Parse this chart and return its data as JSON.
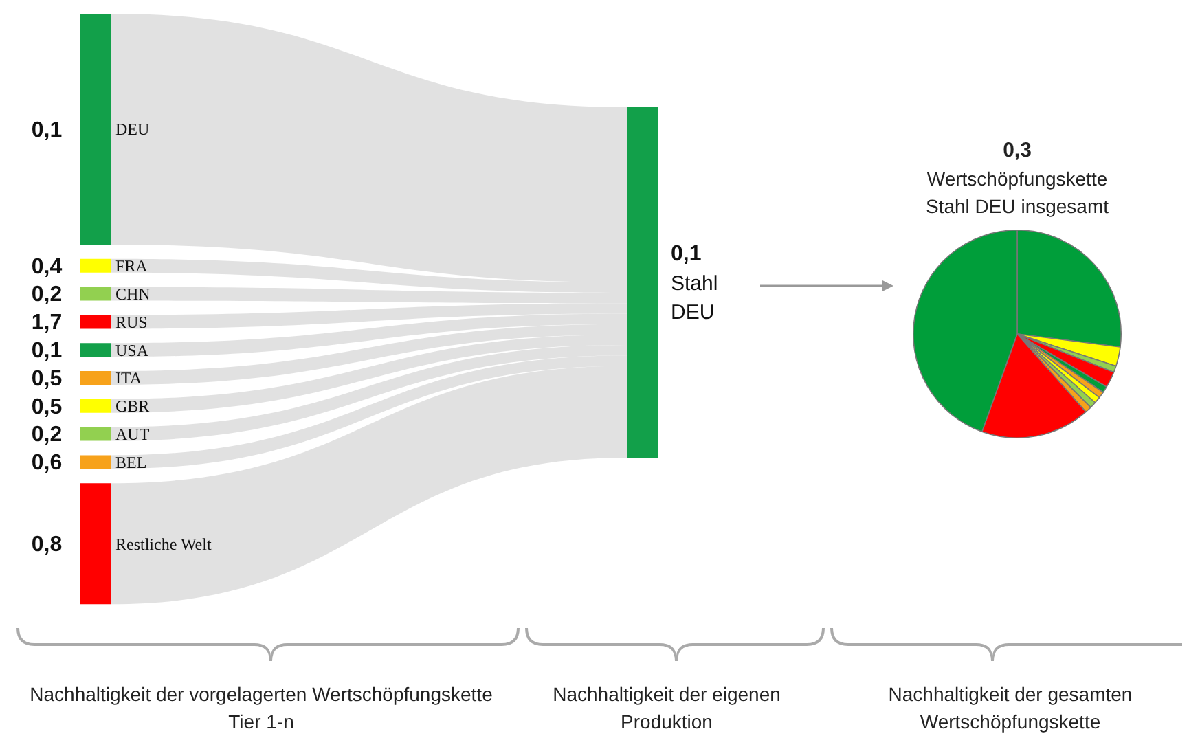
{
  "chart_data": [
    {
      "type": "other",
      "categories": [
        "DEU",
        "FRA",
        "CHN",
        "RUS",
        "USA",
        "ITA",
        "GBR",
        "AUT",
        "BEL",
        "Restliche Welt",
        "Stahl DEU"
      ],
      "values": [
        0.1,
        0.4,
        0.2,
        1.7,
        0.1,
        0.5,
        0.5,
        0.2,
        0.6,
        0.8,
        0.1
      ],
      "value_labels": [
        "0,1",
        "0,4",
        "0,2",
        "1,7",
        "0,1",
        "0,5",
        "0,5",
        "0,2",
        "0,6",
        "0,8",
        "0,1"
      ],
      "colors": [
        "#12a04a",
        "#ffff00",
        "#92d050",
        "#ff0000",
        "#12a04a",
        "#f7a21b",
        "#ffff00",
        "#92d050",
        "#f7a21b",
        "#ff0000",
        "#12a04a"
      ],
      "annotations": [
        "Nachhaltigkeit der vorgelagerten Wertschöpfungskette Tier 1-n",
        "Nachhaltigkeit der eigenen Produktion"
      ]
    },
    {
      "type": "pie",
      "title": "0,3",
      "subtitle": "Wertschöpfungskette Stahl DEU insgesamt",
      "categories": [
        null,
        null,
        null,
        null,
        null,
        null,
        null,
        null,
        null,
        null,
        null
      ],
      "values": [
        27,
        3,
        1,
        2.5,
        1,
        1,
        1,
        1,
        1,
        17,
        44.5
      ],
      "colors": [
        "#009e3a",
        "#ffff00",
        "#92d050",
        "#ff0000",
        "#009e3a",
        "#f7a21b",
        "#ffff00",
        "#92d050",
        "#f7a21b",
        "#ff0000",
        "#009e3a"
      ],
      "annotations": [
        "Nachhaltigkeit der gesamten Wertschöpfungskette"
      ]
    }
  ]
}
